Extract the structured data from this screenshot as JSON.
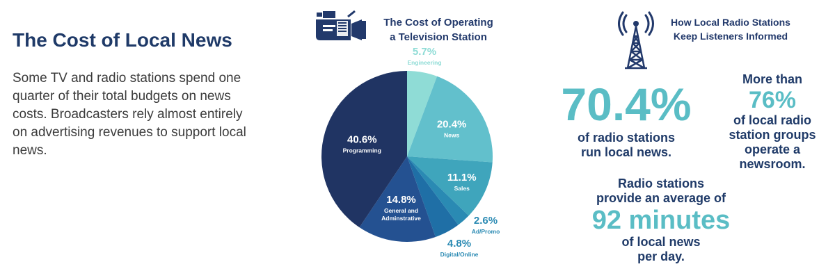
{
  "intro": {
    "title": "The Cost of Local News",
    "body": "Some TV and radio stations spend one quarter of their total budgets on news costs. Broadcasters rely almost entirely on advertising revenues to support local news."
  },
  "tv": {
    "header": "The Cost of Operating\na Television Station"
  },
  "radio": {
    "header": "How Local Radio Stations\nKeep Listeners Informed",
    "stat1": {
      "value": "70.4%",
      "text": "of radio stations\nrun local news."
    },
    "stat2": {
      "pre": "More than",
      "value": "76%",
      "text": "of local radio\nstation groups\noperate a\nnewsroom."
    },
    "stat3": {
      "pre": "Radio stations\nprovide an average of",
      "value": "92 minutes",
      "text": "of local news\nper day."
    }
  },
  "colors": {
    "title_navy": "#1f3a68",
    "teal": "#5abdc5",
    "text_gray": "#3b3b3b"
  },
  "icons": {
    "camera": "video-camera-icon",
    "tower": "radio-tower-icon"
  },
  "chart_data": {
    "type": "pie",
    "title": "The Cost of Operating a Television Station",
    "categories": [
      "Engineering",
      "News",
      "Sales",
      "Ad/Promo",
      "Digital/Online",
      "General and Adminstrative",
      "Programming"
    ],
    "values": [
      5.7,
      20.4,
      11.1,
      2.6,
      4.8,
      14.8,
      40.6
    ],
    "value_labels": [
      "5.7%",
      "20.4%",
      "11.1%",
      "2.6%",
      "4.8%",
      "14.8%",
      "40.6%"
    ],
    "slice_colors": [
      "#8fdcd6",
      "#62c0cc",
      "#3fa5bc",
      "#2a8ab3",
      "#1f6fa6",
      "#245191",
      "#203463"
    ]
  }
}
